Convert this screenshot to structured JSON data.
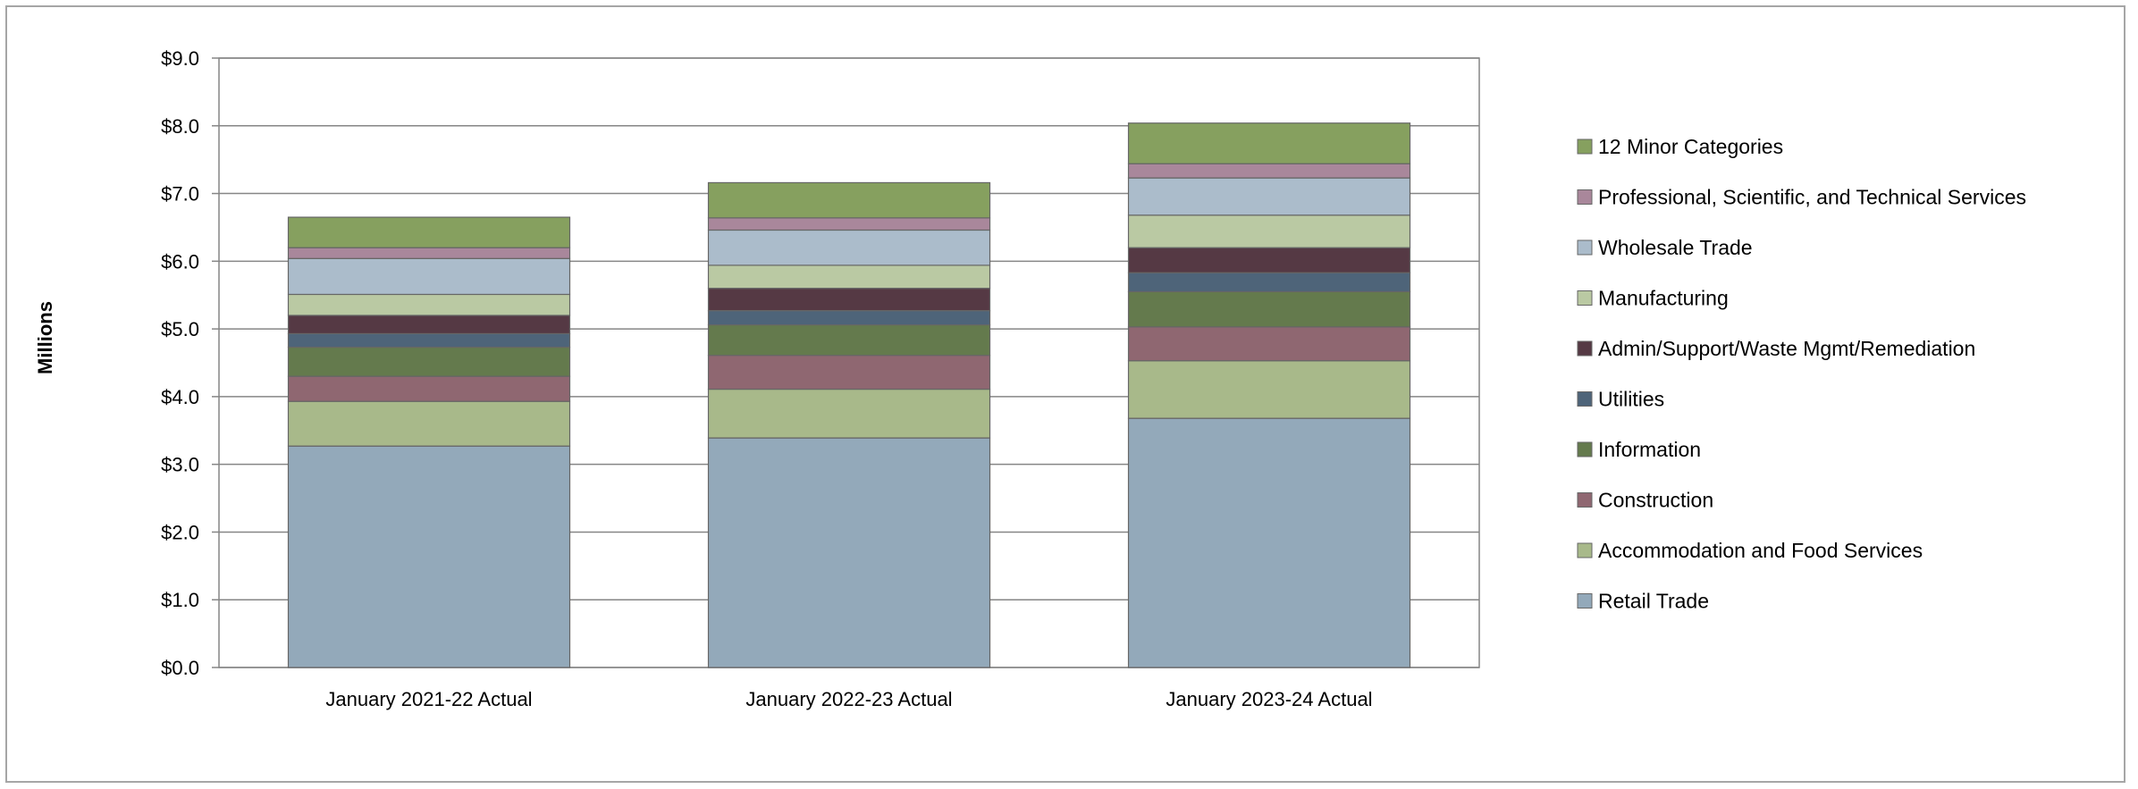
{
  "chart_data": {
    "type": "bar",
    "stacked": true,
    "ylabel": "Millions",
    "xlabel": "",
    "title": "",
    "ylim": [
      0,
      9
    ],
    "ytick_step": 1,
    "ytick_labels": [
      "$0.0",
      "$1.0",
      "$2.0",
      "$3.0",
      "$4.0",
      "$5.0",
      "$6.0",
      "$7.0",
      "$8.0",
      "$9.0"
    ],
    "grid": true,
    "legend_position": "right",
    "categories": [
      "January 2021-22 Actual",
      "January 2022-23 Actual",
      "January 2023-24 Actual"
    ],
    "series": [
      {
        "name": "Retail Trade",
        "color": "#93a9ba",
        "values": [
          3.27,
          3.39,
          3.68
        ]
      },
      {
        "name": "Accommodation and Food Services",
        "color": "#a8b98a",
        "values": [
          0.66,
          0.72,
          0.85
        ]
      },
      {
        "name": "Construction",
        "color": "#8f6771",
        "values": [
          0.37,
          0.5,
          0.5
        ]
      },
      {
        "name": "Information",
        "color": "#647a4d",
        "values": [
          0.43,
          0.45,
          0.52
        ]
      },
      {
        "name": "Utilities",
        "color": "#4e6479",
        "values": [
          0.2,
          0.21,
          0.28
        ]
      },
      {
        "name": "Admin/Support/Waste Mgmt/Remediation",
        "color": "#553944",
        "values": [
          0.27,
          0.33,
          0.37
        ]
      },
      {
        "name": "Manufacturing",
        "color": "#bac9a3",
        "values": [
          0.31,
          0.34,
          0.48
        ]
      },
      {
        "name": "Wholesale Trade",
        "color": "#abbccb",
        "values": [
          0.53,
          0.52,
          0.55
        ]
      },
      {
        "name": "Professional, Scientific, and Technical Services",
        "color": "#a9879b",
        "values": [
          0.16,
          0.18,
          0.21
        ]
      },
      {
        "name": "12 Minor Categories",
        "color": "#86a05f",
        "values": [
          0.45,
          0.52,
          0.6
        ]
      }
    ]
  }
}
